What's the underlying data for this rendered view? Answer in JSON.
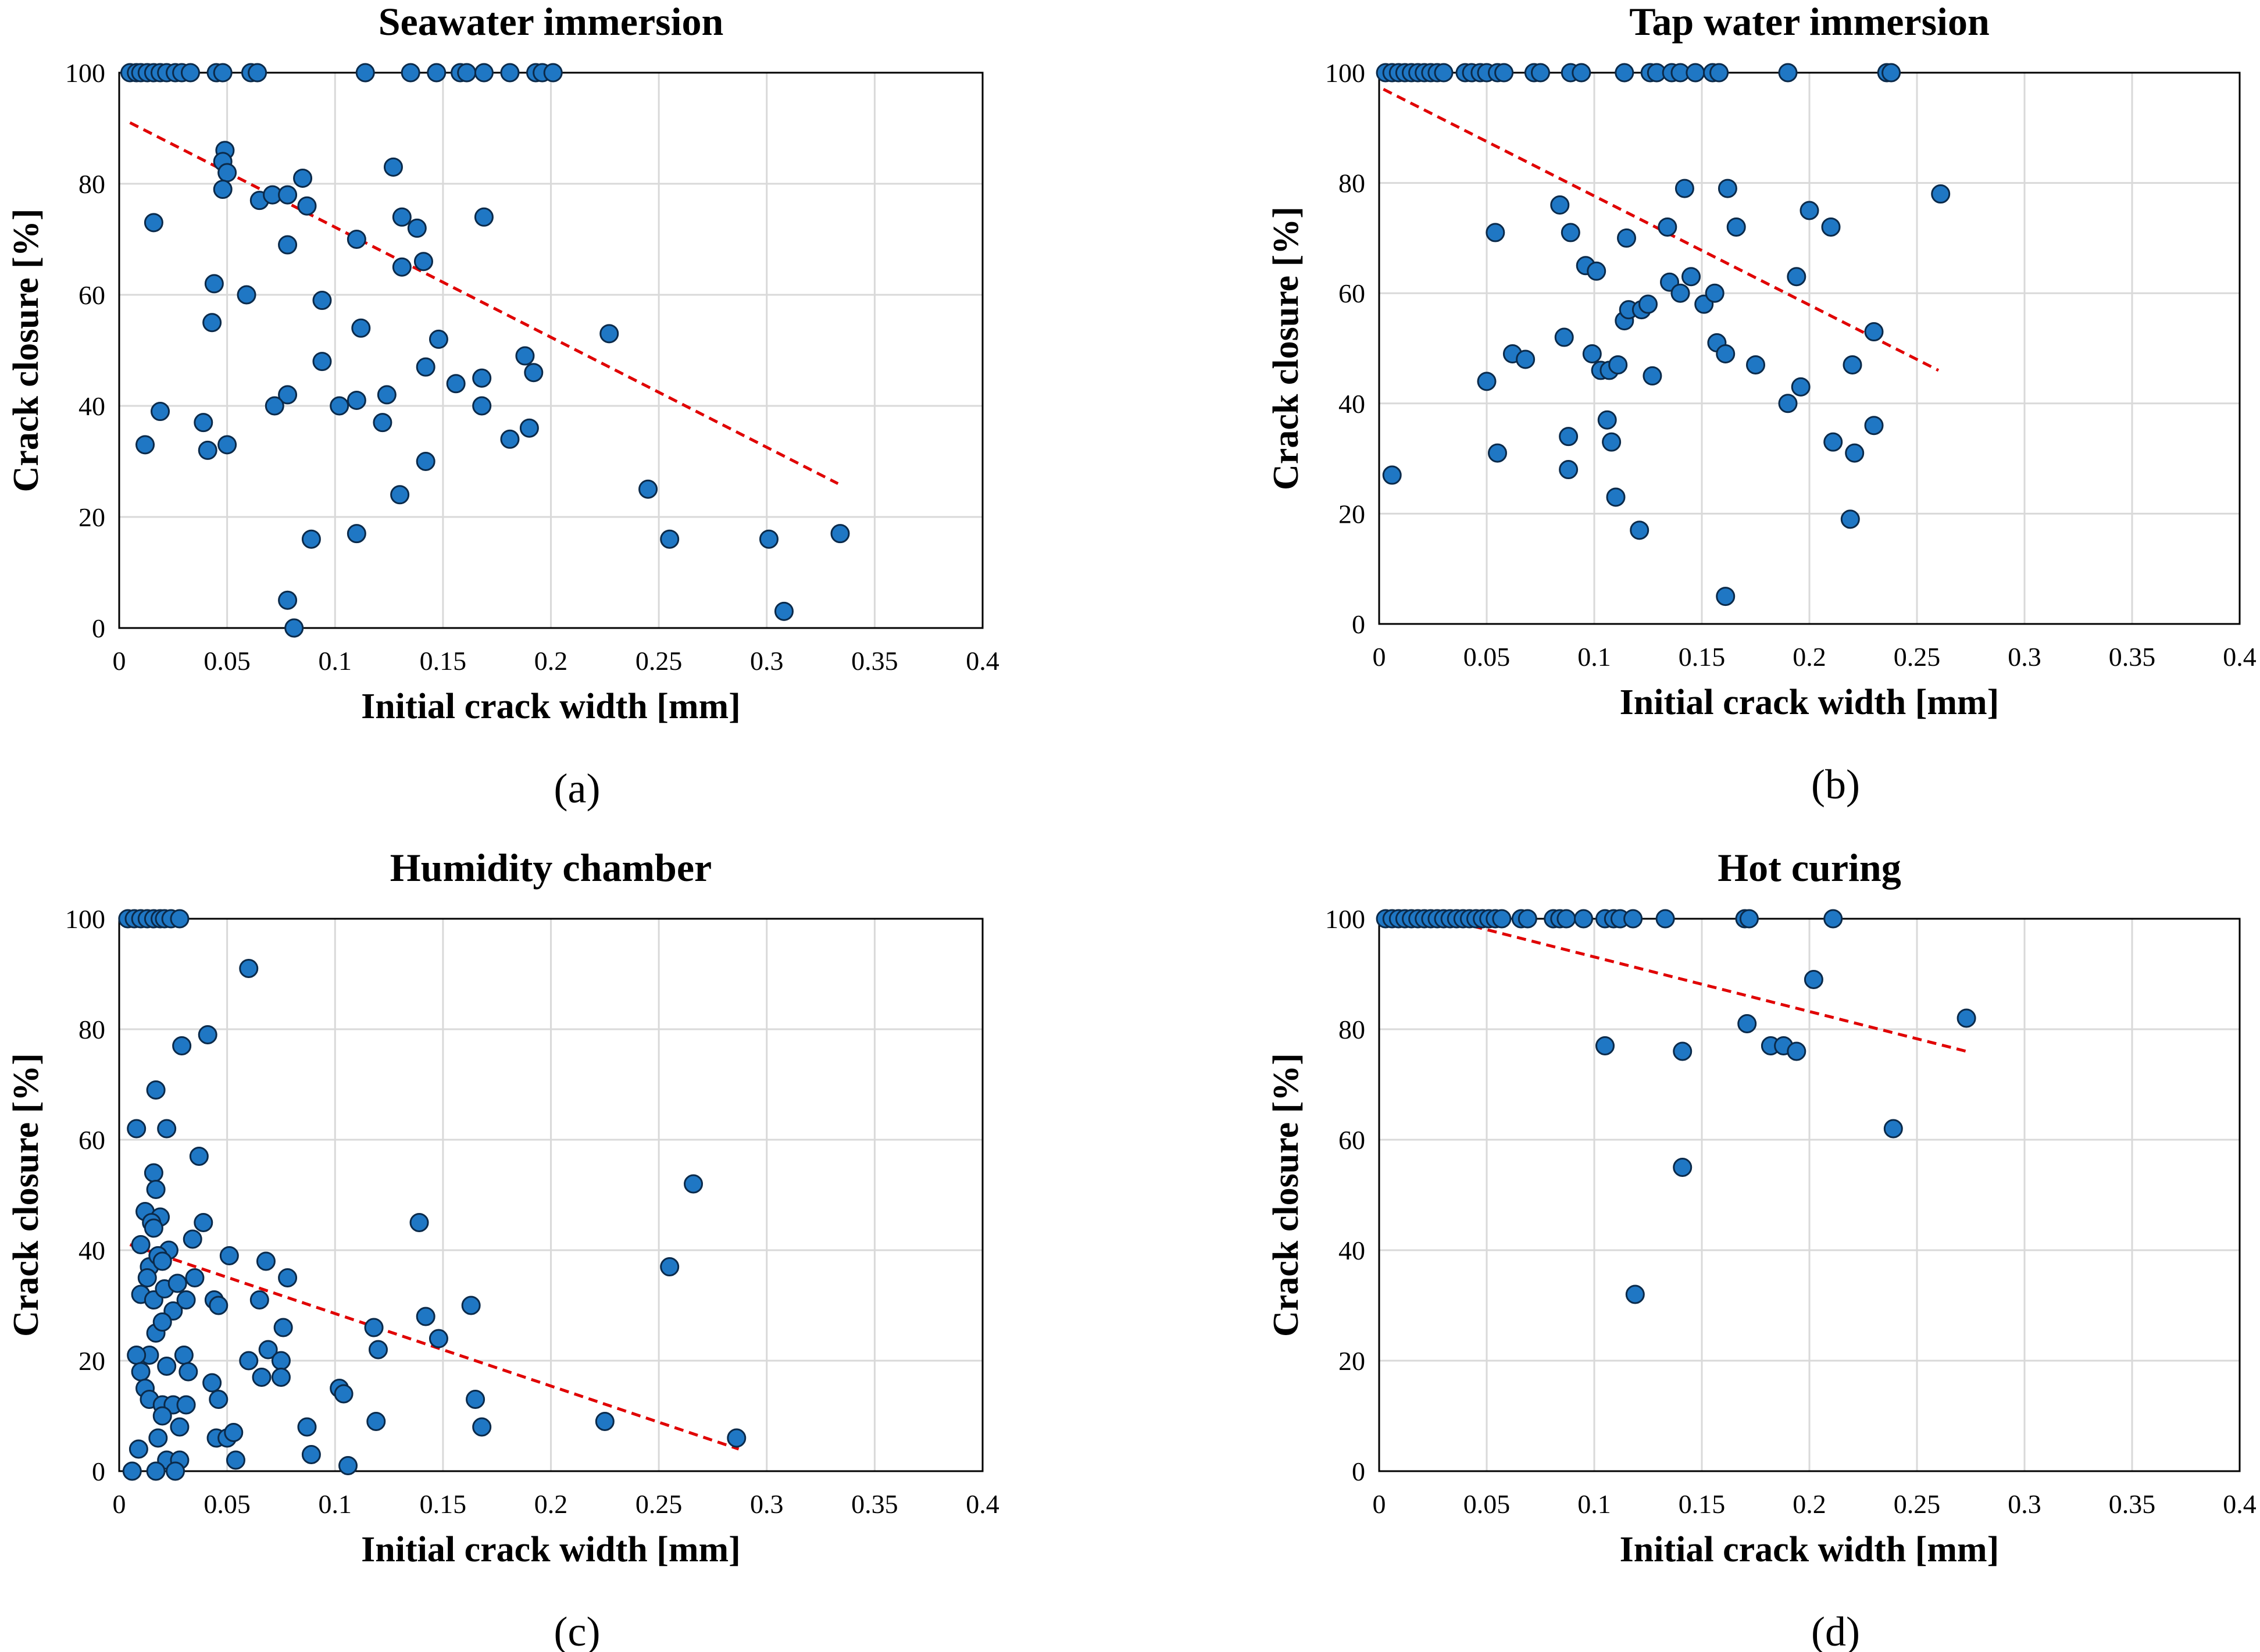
{
  "chart_data": [
    {
      "type": "scatter",
      "panel": "(a)",
      "title": "Seawater immersion",
      "xlabel": "Initial crack width [mm]",
      "ylabel": "Crack closure [%]",
      "xlim": [
        0,
        0.4
      ],
      "ylim": [
        0,
        100
      ],
      "xticks": [
        "0",
        "0.05",
        "0.1",
        "0.15",
        "0.2",
        "0.25",
        "0.3",
        "0.35",
        "0.4"
      ],
      "yticks": [
        "0",
        "20",
        "40",
        "60",
        "80",
        "100"
      ],
      "trendline": {
        "x": [
          0.005,
          0.333
        ],
        "y": [
          91,
          26
        ]
      },
      "points": [
        [
          0.005,
          100
        ],
        [
          0.008,
          100
        ],
        [
          0.01,
          100
        ],
        [
          0.013,
          100
        ],
        [
          0.016,
          100
        ],
        [
          0.019,
          100
        ],
        [
          0.022,
          100
        ],
        [
          0.026,
          100
        ],
        [
          0.029,
          100
        ],
        [
          0.033,
          100
        ],
        [
          0.045,
          100
        ],
        [
          0.048,
          100
        ],
        [
          0.061,
          100
        ],
        [
          0.064,
          100
        ],
        [
          0.114,
          100
        ],
        [
          0.135,
          100
        ],
        [
          0.147,
          100
        ],
        [
          0.158,
          100
        ],
        [
          0.161,
          100
        ],
        [
          0.169,
          100
        ],
        [
          0.181,
          100
        ],
        [
          0.193,
          100
        ],
        [
          0.196,
          100
        ],
        [
          0.201,
          100
        ],
        [
          0.049,
          86
        ],
        [
          0.048,
          84
        ],
        [
          0.05,
          82
        ],
        [
          0.048,
          79
        ],
        [
          0.127,
          83
        ],
        [
          0.065,
          77
        ],
        [
          0.071,
          78
        ],
        [
          0.078,
          78
        ],
        [
          0.085,
          81
        ],
        [
          0.087,
          76
        ],
        [
          0.016,
          73
        ],
        [
          0.131,
          74
        ],
        [
          0.138,
          72
        ],
        [
          0.169,
          74
        ],
        [
          0.11,
          70
        ],
        [
          0.078,
          69
        ],
        [
          0.131,
          65
        ],
        [
          0.141,
          66
        ],
        [
          0.044,
          62
        ],
        [
          0.059,
          60
        ],
        [
          0.094,
          59
        ],
        [
          0.043,
          55
        ],
        [
          0.112,
          54
        ],
        [
          0.148,
          52
        ],
        [
          0.227,
          53
        ],
        [
          0.094,
          48
        ],
        [
          0.142,
          47
        ],
        [
          0.188,
          49
        ],
        [
          0.192,
          46
        ],
        [
          0.156,
          44
        ],
        [
          0.168,
          45
        ],
        [
          0.078,
          42
        ],
        [
          0.11,
          41
        ],
        [
          0.124,
          42
        ],
        [
          0.072,
          40
        ],
        [
          0.102,
          40
        ],
        [
          0.168,
          40
        ],
        [
          0.019,
          39
        ],
        [
          0.039,
          37
        ],
        [
          0.122,
          37
        ],
        [
          0.012,
          33
        ],
        [
          0.041,
          32
        ],
        [
          0.05,
          33
        ],
        [
          0.181,
          34
        ],
        [
          0.19,
          36
        ],
        [
          0.142,
          30
        ],
        [
          0.13,
          24
        ],
        [
          0.245,
          25
        ],
        [
          0.089,
          16
        ],
        [
          0.11,
          17
        ],
        [
          0.255,
          16
        ],
        [
          0.301,
          16
        ],
        [
          0.334,
          17
        ],
        [
          0.078,
          5
        ],
        [
          0.081,
          0
        ],
        [
          0.308,
          3
        ]
      ]
    },
    {
      "type": "scatter",
      "panel": "(b)",
      "title": "Tap water immersion",
      "xlabel": "Initial crack width [mm]",
      "ylabel": "Crack closure [%]",
      "xlim": [
        0,
        0.4
      ],
      "ylim": [
        0,
        100
      ],
      "xticks": [
        "0",
        "0.05",
        "0.1",
        "0.15",
        "0.2",
        "0.25",
        "0.3",
        "0.35",
        "0.4"
      ],
      "yticks": [
        "0",
        "20",
        "40",
        "60",
        "80",
        "100"
      ],
      "trendline": {
        "x": [
          0.002,
          0.26
        ],
        "y": [
          97,
          46
        ]
      },
      "points": [
        [
          0.003,
          100
        ],
        [
          0.006,
          100
        ],
        [
          0.009,
          100
        ],
        [
          0.012,
          100
        ],
        [
          0.015,
          100
        ],
        [
          0.018,
          100
        ],
        [
          0.021,
          100
        ],
        [
          0.024,
          100
        ],
        [
          0.027,
          100
        ],
        [
          0.03,
          100
        ],
        [
          0.04,
          100
        ],
        [
          0.043,
          100
        ],
        [
          0.047,
          100
        ],
        [
          0.05,
          100
        ],
        [
          0.055,
          100
        ],
        [
          0.058,
          100
        ],
        [
          0.072,
          100
        ],
        [
          0.075,
          100
        ],
        [
          0.089,
          100
        ],
        [
          0.094,
          100
        ],
        [
          0.114,
          100
        ],
        [
          0.126,
          100
        ],
        [
          0.129,
          100
        ],
        [
          0.136,
          100
        ],
        [
          0.14,
          100
        ],
        [
          0.147,
          100
        ],
        [
          0.155,
          100
        ],
        [
          0.158,
          100
        ],
        [
          0.19,
          100
        ],
        [
          0.236,
          100
        ],
        [
          0.238,
          100
        ],
        [
          0.006,
          27
        ],
        [
          0.054,
          71
        ],
        [
          0.05,
          44
        ],
        [
          0.055,
          31
        ],
        [
          0.062,
          49
        ],
        [
          0.068,
          48
        ],
        [
          0.084,
          76
        ],
        [
          0.089,
          71
        ],
        [
          0.096,
          65
        ],
        [
          0.101,
          64
        ],
        [
          0.086,
          52
        ],
        [
          0.099,
          49
        ],
        [
          0.103,
          46
        ],
        [
          0.107,
          46
        ],
        [
          0.111,
          47
        ],
        [
          0.088,
          34
        ],
        [
          0.088,
          28
        ],
        [
          0.106,
          37
        ],
        [
          0.108,
          33
        ],
        [
          0.11,
          23
        ],
        [
          0.115,
          70
        ],
        [
          0.114,
          55
        ],
        [
          0.116,
          57
        ],
        [
          0.122,
          57
        ],
        [
          0.125,
          58
        ],
        [
          0.127,
          45
        ],
        [
          0.121,
          17
        ],
        [
          0.134,
          72
        ],
        [
          0.135,
          62
        ],
        [
          0.14,
          60
        ],
        [
          0.142,
          79
        ],
        [
          0.145,
          63
        ],
        [
          0.151,
          58
        ],
        [
          0.156,
          60
        ],
        [
          0.157,
          51
        ],
        [
          0.161,
          49
        ],
        [
          0.162,
          79
        ],
        [
          0.166,
          72
        ],
        [
          0.175,
          47
        ],
        [
          0.161,
          5
        ],
        [
          0.19,
          40
        ],
        [
          0.194,
          63
        ],
        [
          0.196,
          43
        ],
        [
          0.2,
          75
        ],
        [
          0.21,
          72
        ],
        [
          0.211,
          33
        ],
        [
          0.219,
          19
        ],
        [
          0.22,
          47
        ],
        [
          0.221,
          31
        ],
        [
          0.23,
          36
        ],
        [
          0.23,
          53
        ],
        [
          0.261,
          78
        ]
      ]
    },
    {
      "type": "scatter",
      "panel": "(c)",
      "title": "Humidity chamber",
      "xlabel": "Initial crack width [mm]",
      "ylabel": "Crack closure [%]",
      "xlim": [
        0,
        0.4
      ],
      "ylim": [
        0,
        100
      ],
      "xticks": [
        "0",
        "0.05",
        "0.1",
        "0.15",
        "0.2",
        "0.25",
        "0.3",
        "0.35",
        "0.4"
      ],
      "yticks": [
        "0",
        "20",
        "40",
        "60",
        "80",
        "100"
      ],
      "trendline": {
        "x": [
          0.005,
          0.287
        ],
        "y": [
          41,
          4
        ]
      },
      "points": [
        [
          0.004,
          100
        ],
        [
          0.007,
          100
        ],
        [
          0.01,
          100
        ],
        [
          0.013,
          100
        ],
        [
          0.016,
          100
        ],
        [
          0.019,
          100
        ],
        [
          0.021,
          100
        ],
        [
          0.024,
          100
        ],
        [
          0.028,
          100
        ],
        [
          0.06,
          91
        ],
        [
          0.041,
          79
        ],
        [
          0.029,
          77
        ],
        [
          0.017,
          69
        ],
        [
          0.022,
          62
        ],
        [
          0.008,
          62
        ],
        [
          0.037,
          57
        ],
        [
          0.016,
          54
        ],
        [
          0.017,
          51
        ],
        [
          0.012,
          47
        ],
        [
          0.019,
          46
        ],
        [
          0.015,
          45
        ],
        [
          0.016,
          44
        ],
        [
          0.039,
          45
        ],
        [
          0.023,
          40
        ],
        [
          0.01,
          41
        ],
        [
          0.014,
          37
        ],
        [
          0.013,
          35
        ],
        [
          0.018,
          39
        ],
        [
          0.02,
          38
        ],
        [
          0.034,
          42
        ],
        [
          0.051,
          39
        ],
        [
          0.068,
          38
        ],
        [
          0.078,
          35
        ],
        [
          0.01,
          32
        ],
        [
          0.016,
          31
        ],
        [
          0.021,
          33
        ],
        [
          0.027,
          34
        ],
        [
          0.035,
          35
        ],
        [
          0.044,
          31
        ],
        [
          0.046,
          30
        ],
        [
          0.025,
          29
        ],
        [
          0.017,
          25
        ],
        [
          0.02,
          27
        ],
        [
          0.031,
          31
        ],
        [
          0.065,
          31
        ],
        [
          0.076,
          26
        ],
        [
          0.014,
          21
        ],
        [
          0.022,
          19
        ],
        [
          0.008,
          21
        ],
        [
          0.01,
          18
        ],
        [
          0.03,
          21
        ],
        [
          0.032,
          18
        ],
        [
          0.06,
          20
        ],
        [
          0.069,
          22
        ],
        [
          0.075,
          20
        ],
        [
          0.043,
          16
        ],
        [
          0.066,
          17
        ],
        [
          0.075,
          17
        ],
        [
          0.012,
          15
        ],
        [
          0.014,
          13
        ],
        [
          0.02,
          12
        ],
        [
          0.025,
          12
        ],
        [
          0.031,
          12
        ],
        [
          0.046,
          13
        ],
        [
          0.02,
          10
        ],
        [
          0.028,
          8
        ],
        [
          0.018,
          6
        ],
        [
          0.045,
          6
        ],
        [
          0.05,
          6
        ],
        [
          0.053,
          7
        ],
        [
          0.009,
          4
        ],
        [
          0.022,
          2
        ],
        [
          0.028,
          2
        ],
        [
          0.054,
          2
        ],
        [
          0.017,
          0
        ],
        [
          0.006,
          0
        ],
        [
          0.026,
          0
        ],
        [
          0.087,
          8
        ],
        [
          0.089,
          3
        ],
        [
          0.102,
          15
        ],
        [
          0.104,
          14
        ],
        [
          0.106,
          1
        ],
        [
          0.119,
          9
        ],
        [
          0.118,
          26
        ],
        [
          0.12,
          22
        ],
        [
          0.139,
          45
        ],
        [
          0.142,
          28
        ],
        [
          0.148,
          24
        ],
        [
          0.163,
          30
        ],
        [
          0.165,
          13
        ],
        [
          0.168,
          8
        ],
        [
          0.225,
          9
        ],
        [
          0.255,
          37
        ],
        [
          0.266,
          52
        ],
        [
          0.286,
          6
        ]
      ]
    },
    {
      "type": "scatter",
      "panel": "(d)",
      "title": "Hot curing",
      "xlabel": "Initial crack width [mm]",
      "ylabel": "Crack closure [%]",
      "xlim": [
        0,
        0.4
      ],
      "ylim": [
        0,
        100
      ],
      "xticks": [
        "0",
        "0.05",
        "0.1",
        "0.15",
        "0.2",
        "0.25",
        "0.3",
        "0.35",
        "0.4"
      ],
      "yticks": [
        "0",
        "20",
        "40",
        "60",
        "80",
        "100"
      ],
      "trendline": {
        "x": [
          0.03,
          0.273
        ],
        "y": [
          100,
          76
        ]
      },
      "points": [
        [
          0.003,
          100
        ],
        [
          0.006,
          100
        ],
        [
          0.009,
          100
        ],
        [
          0.012,
          100
        ],
        [
          0.015,
          100
        ],
        [
          0.018,
          100
        ],
        [
          0.021,
          100
        ],
        [
          0.024,
          100
        ],
        [
          0.027,
          100
        ],
        [
          0.03,
          100
        ],
        [
          0.033,
          100
        ],
        [
          0.036,
          100
        ],
        [
          0.039,
          100
        ],
        [
          0.042,
          100
        ],
        [
          0.045,
          100
        ],
        [
          0.048,
          100
        ],
        [
          0.051,
          100
        ],
        [
          0.054,
          100
        ],
        [
          0.057,
          100
        ],
        [
          0.066,
          100
        ],
        [
          0.069,
          100
        ],
        [
          0.081,
          100
        ],
        [
          0.084,
          100
        ],
        [
          0.087,
          100
        ],
        [
          0.095,
          100
        ],
        [
          0.105,
          100
        ],
        [
          0.109,
          100
        ],
        [
          0.112,
          100
        ],
        [
          0.118,
          100
        ],
        [
          0.133,
          100
        ],
        [
          0.17,
          100
        ],
        [
          0.172,
          100
        ],
        [
          0.211,
          100
        ],
        [
          0.105,
          77
        ],
        [
          0.119,
          32
        ],
        [
          0.141,
          76
        ],
        [
          0.141,
          55
        ],
        [
          0.171,
          81
        ],
        [
          0.182,
          77
        ],
        [
          0.188,
          77
        ],
        [
          0.194,
          76
        ],
        [
          0.202,
          89
        ],
        [
          0.239,
          62
        ],
        [
          0.273,
          82
        ]
      ]
    }
  ]
}
